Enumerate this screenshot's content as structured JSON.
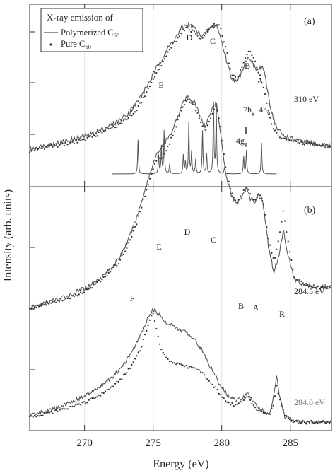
{
  "chart_data": [
    {
      "type": "line",
      "panel": "(a)",
      "energy_label": "310 eV",
      "legend": {
        "title": "X-ray emission of",
        "entries": [
          {
            "name": "Polymerized C",
            "sub": "60",
            "style": "line"
          },
          {
            "name": "Pure C",
            "sub": "60",
            "style": "dots"
          }
        ]
      },
      "peak_labels": [
        {
          "text": "A",
          "x": 283.0,
          "y": 0.5
        },
        {
          "text": "B",
          "x": 281.8,
          "y": 0.62
        },
        {
          "text": "C",
          "x": 279.5,
          "y": 0.97
        },
        {
          "text": "D",
          "x": 277.5,
          "y": 1.0
        },
        {
          "text": "E",
          "x": 275.5,
          "y": 0.47
        },
        {
          "text": "F",
          "x": 273.0,
          "y": 0.3
        }
      ],
      "transition_labels": [
        {
          "text": "7h",
          "sub": "g",
          "x": 282.2,
          "y": 0.28
        },
        {
          "text": "4h",
          "sub": "u",
          "x": 283.2,
          "y": 0.28
        },
        {
          "text": "4g",
          "sub": "g",
          "x": 281.7,
          "y": 0.07
        }
      ],
      "series": [
        {
          "name": "Polymerized C60",
          "style": "line",
          "x": [
            265.5,
            267,
            269,
            270.5,
            271.5,
            272.5,
            273.2,
            273.8,
            274.3,
            274.8,
            275.3,
            275.8,
            276.2,
            276.7,
            277.1,
            277.5,
            278.0,
            278.4,
            278.8,
            279.2,
            279.6,
            279.9,
            280.3,
            280.7,
            281.1,
            281.4,
            281.8,
            282.1,
            282.4,
            282.7,
            283.0,
            283.3,
            283.6,
            284.0,
            284.5,
            285.0,
            285.8,
            287.0,
            288.0
          ],
          "y": [
            0.18,
            0.21,
            0.25,
            0.29,
            0.33,
            0.38,
            0.43,
            0.5,
            0.57,
            0.65,
            0.74,
            0.82,
            0.88,
            0.94,
            1.0,
            1.02,
            1.0,
            0.95,
            0.96,
            1.0,
            1.02,
            0.94,
            0.8,
            0.67,
            0.63,
            0.7,
            0.79,
            0.8,
            0.73,
            0.72,
            0.74,
            0.6,
            0.45,
            0.33,
            0.28,
            0.26,
            0.24,
            0.22,
            0.21
          ]
        },
        {
          "name": "Pure C60",
          "style": "dots",
          "x": [
            265.5,
            267,
            269,
            270.5,
            271.5,
            272.5,
            273.2,
            273.8,
            274.3,
            274.8,
            275.3,
            275.8,
            276.2,
            276.7,
            277.1,
            277.5,
            278.0,
            278.4,
            278.8,
            279.2,
            279.6,
            279.9,
            280.3,
            280.7,
            281.1,
            281.4,
            281.8,
            282.1,
            282.4,
            282.7,
            283.0,
            283.3,
            283.6,
            284.0,
            284.5,
            285.0,
            285.8,
            287.0,
            288.0
          ],
          "y": [
            0.17,
            0.2,
            0.23,
            0.27,
            0.31,
            0.35,
            0.4,
            0.46,
            0.53,
            0.61,
            0.7,
            0.78,
            0.85,
            0.92,
            0.98,
            1.0,
            0.97,
            0.92,
            0.95,
            1.0,
            1.03,
            1.0,
            0.86,
            0.7,
            0.65,
            0.72,
            0.82,
            0.84,
            0.78,
            0.7,
            0.62,
            0.48,
            0.36,
            0.29,
            0.26,
            0.25,
            0.23,
            0.22,
            0.21
          ]
        },
        {
          "name": "calculated spectrum",
          "style": "line",
          "peaks": [
            [
              273.9,
              0.44
            ],
            [
              275.4,
              0.24
            ],
            [
              275.6,
              0.35
            ],
            [
              275.8,
              0.55
            ],
            [
              276.2,
              0.12
            ],
            [
              277.2,
              0.24
            ],
            [
              277.35,
              0.15
            ],
            [
              277.6,
              0.66
            ],
            [
              277.8,
              0.28
            ],
            [
              278.1,
              0.18
            ],
            [
              278.6,
              0.55
            ],
            [
              278.9,
              0.25
            ],
            [
              279.4,
              0.9
            ],
            [
              279.6,
              0.86
            ],
            [
              280.2,
              0.08
            ],
            [
              281.6,
              0.22
            ],
            [
              281.8,
              0.3
            ],
            [
              282.9,
              0.4
            ]
          ],
          "x_range": [
            272.0,
            284.0
          ]
        }
      ],
      "xlim": [
        266,
        288
      ],
      "yticks_visible": 3
    },
    {
      "type": "line",
      "panel": "(b)",
      "peak_labels": [
        {
          "text": "R",
          "x": 284.5
        },
        {
          "text": "A",
          "x": 283.0
        },
        {
          "text": "B",
          "x": 281.0
        },
        {
          "text": "C",
          "x": 279.5
        },
        {
          "text": "D",
          "x": 277.5
        },
        {
          "text": "E",
          "x": 275.5
        },
        {
          "text": "F",
          "x": 273.0
        }
      ],
      "energy_labels": [
        "284.5 eV",
        "284.0 eV"
      ],
      "series": [
        {
          "name": "Polymerized C60 (284.5 eV)",
          "style": "line",
          "x": [
            265.5,
            267,
            269,
            270.5,
            271.5,
            272.5,
            273.2,
            273.8,
            274.3,
            274.8,
            275.3,
            275.8,
            276.2,
            276.7,
            277.1,
            277.5,
            278.0,
            278.4,
            278.8,
            279.2,
            279.6,
            279.9,
            280.3,
            280.7,
            281.1,
            281.4,
            281.8,
            282.1,
            282.4,
            282.7,
            283.0,
            283.4,
            283.8,
            284.1,
            284.5,
            284.9,
            285.3,
            286.0,
            287.0,
            288.0
          ],
          "y": [
            1.0,
            1.05,
            1.12,
            1.2,
            1.28,
            1.4,
            1.55,
            1.72,
            1.9,
            2.08,
            2.22,
            2.3,
            2.35,
            2.48,
            2.6,
            2.66,
            2.62,
            2.52,
            2.42,
            2.55,
            2.62,
            2.4,
            2.05,
            1.9,
            1.82,
            1.88,
            1.95,
            1.86,
            1.84,
            1.9,
            1.84,
            1.5,
            1.3,
            1.4,
            1.62,
            1.4,
            1.24,
            1.2,
            1.18,
            1.18
          ]
        },
        {
          "name": "Pure C60 (284.5 eV)",
          "style": "dots",
          "x": [
            265.5,
            267,
            269,
            270.5,
            271.5,
            272.5,
            273.2,
            273.8,
            274.3,
            274.8,
            275.3,
            275.8,
            276.2,
            276.7,
            277.1,
            277.5,
            278.0,
            278.4,
            278.8,
            279.2,
            279.6,
            279.9,
            280.3,
            280.7,
            281.1,
            281.4,
            281.8,
            282.1,
            282.4,
            282.7,
            283.0,
            283.4,
            283.8,
            284.1,
            284.5,
            284.9,
            285.3,
            286.0,
            287.0,
            288.0
          ],
          "y": [
            1.0,
            1.04,
            1.1,
            1.18,
            1.26,
            1.37,
            1.52,
            1.68,
            1.86,
            2.04,
            2.18,
            2.2,
            2.3,
            2.44,
            2.58,
            2.64,
            2.6,
            2.48,
            2.38,
            2.5,
            2.6,
            2.45,
            2.1,
            1.92,
            1.84,
            1.9,
            1.97,
            1.9,
            1.84,
            1.9,
            1.86,
            1.55,
            1.38,
            1.52,
            1.78,
            1.48,
            1.26,
            1.2,
            1.18,
            1.18
          ]
        },
        {
          "name": "Polymerized C60 (284.0 eV)",
          "style": "line",
          "x": [
            265.5,
            267,
            268.5,
            270,
            271,
            272,
            272.8,
            273.5,
            274.1,
            274.6,
            275.0,
            275.5,
            276.0,
            276.5,
            277.0,
            277.5,
            278.0,
            278.5,
            279.0,
            279.5,
            280.0,
            280.5,
            281.0,
            281.5,
            281.9,
            282.3,
            282.7,
            283.1,
            283.5,
            283.8,
            284.0,
            284.2,
            284.6,
            285.2,
            286.0,
            287.0,
            288.0
          ],
          "y": [
            0.1,
            0.14,
            0.2,
            0.28,
            0.35,
            0.44,
            0.55,
            0.68,
            0.82,
            0.96,
            1.05,
            1.0,
            0.92,
            0.9,
            0.86,
            0.84,
            0.78,
            0.7,
            0.58,
            0.46,
            0.36,
            0.28,
            0.24,
            0.26,
            0.3,
            0.24,
            0.18,
            0.14,
            0.12,
            0.28,
            0.46,
            0.28,
            0.1,
            0.06,
            0.05,
            0.05,
            0.05
          ]
        },
        {
          "name": "Pure C60 (284.0 eV)",
          "style": "dots",
          "x": [
            265.5,
            267,
            268.5,
            270,
            271,
            272,
            272.8,
            273.5,
            274.1,
            274.6,
            275.0,
            275.5,
            276.0,
            276.5,
            277.0,
            277.5,
            278.0,
            278.5,
            279.0,
            279.5,
            280.0,
            280.5,
            281.0,
            281.5,
            281.9,
            282.3,
            282.7,
            283.1,
            283.5,
            283.8,
            284.0,
            284.2,
            284.6,
            285.2,
            286.0,
            287.0,
            288.0
          ],
          "y": [
            0.08,
            0.12,
            0.16,
            0.22,
            0.28,
            0.36,
            0.45,
            0.56,
            0.7,
            0.9,
            1.02,
            0.72,
            0.6,
            0.58,
            0.56,
            0.54,
            0.52,
            0.5,
            0.42,
            0.36,
            0.28,
            0.22,
            0.2,
            0.24,
            0.28,
            0.2,
            0.15,
            0.12,
            0.12,
            0.22,
            0.38,
            0.26,
            0.1,
            0.06,
            0.05,
            0.05,
            0.05
          ]
        }
      ],
      "xlim": [
        266,
        288
      ],
      "yticks_visible": 3
    }
  ],
  "axes": {
    "xlabel": "Energy (eV)",
    "ylabel": "Intensity (arb. units)",
    "xticks": [
      270,
      275,
      280,
      285
    ],
    "grid": "vertical gridlines at x ticks"
  }
}
